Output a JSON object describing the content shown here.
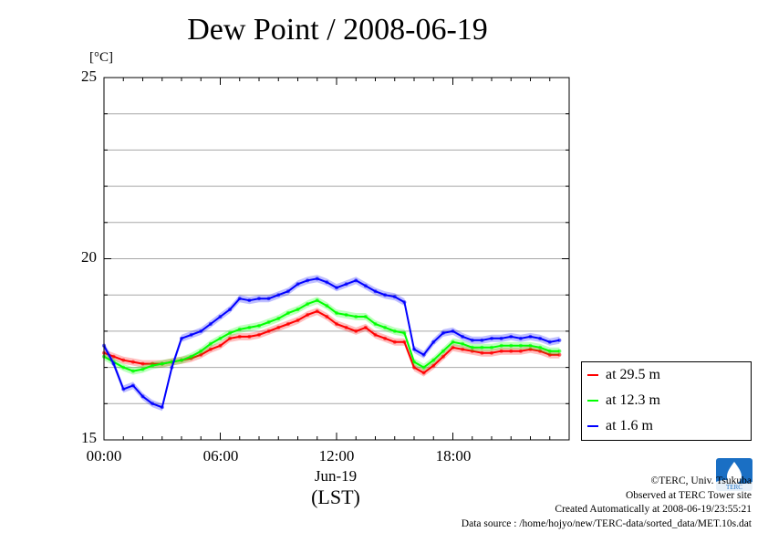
{
  "title": "Dew Point / 2008-06-19",
  "unit": "[°C]",
  "legend": {
    "items": [
      {
        "label": "at 29.5 m",
        "color": "#ff0000"
      },
      {
        "label": "at 12.3 m",
        "color": "#00ff00"
      },
      {
        "label": "at 1.6 m",
        "color": "#0000ff"
      }
    ]
  },
  "credits": {
    "copyright": "©TERC, Univ. Tsukuba",
    "site": "Observed at TERC Tower site",
    "created": "Created Automatically at 2008-06-19/23:55:21",
    "source": "Data source : /home/hojyo/new/TERC-data/sorted_data/MET.10s.dat"
  },
  "logo_text": "TERC",
  "chart_data": {
    "type": "line",
    "title": "Dew Point / 2008-06-19",
    "ylabel": "[°C]",
    "xlabel": "(LST)",
    "x_sublabel": "Jun-19",
    "xlim": [
      0,
      24
    ],
    "ylim": [
      15,
      25
    ],
    "x_ticks": [
      "00:00",
      "06:00",
      "12:00",
      "18:00"
    ],
    "y_ticks": [
      "15",
      "20",
      "25"
    ],
    "grid": true,
    "legend_position": "right-bottom",
    "series": [
      {
        "name": "at 29.5 m",
        "color": "#ff0000",
        "x": [
          0,
          0.5,
          1,
          1.5,
          2,
          2.5,
          3,
          3.5,
          4,
          4.5,
          5,
          5.5,
          6,
          6.5,
          7,
          7.5,
          8,
          8.5,
          9,
          9.5,
          10,
          10.5,
          11,
          11.5,
          12,
          12.5,
          13,
          13.5,
          14,
          14.5,
          15,
          15.5,
          16,
          16.5,
          17,
          17.5,
          18,
          18.5,
          19,
          19.5,
          20,
          20.5,
          21,
          21.5,
          22,
          22.5,
          23,
          23.5
        ],
        "values": [
          17.4,
          17.3,
          17.2,
          17.15,
          17.1,
          17.1,
          17.1,
          17.15,
          17.2,
          17.25,
          17.35,
          17.5,
          17.6,
          17.8,
          17.85,
          17.85,
          17.9,
          18.0,
          18.1,
          18.2,
          18.3,
          18.45,
          18.55,
          18.4,
          18.2,
          18.1,
          18.0,
          18.1,
          17.9,
          17.8,
          17.7,
          17.7,
          17.0,
          16.85,
          17.05,
          17.3,
          17.55,
          17.5,
          17.45,
          17.4,
          17.4,
          17.45,
          17.45,
          17.45,
          17.5,
          17.45,
          17.35,
          17.35
        ]
      },
      {
        "name": "at 12.3 m",
        "color": "#00ff00",
        "x": [
          0,
          0.5,
          1,
          1.5,
          2,
          2.5,
          3,
          3.5,
          4,
          4.5,
          5,
          5.5,
          6,
          6.5,
          7,
          7.5,
          8,
          8.5,
          9,
          9.5,
          10,
          10.5,
          11,
          11.5,
          12,
          12.5,
          13,
          13.5,
          14,
          14.5,
          15,
          15.5,
          16,
          16.5,
          17,
          17.5,
          18,
          18.5,
          19,
          19.5,
          20,
          20.5,
          21,
          21.5,
          22,
          22.5,
          23,
          23.5
        ],
        "values": [
          17.3,
          17.15,
          17.0,
          16.9,
          16.95,
          17.05,
          17.1,
          17.15,
          17.2,
          17.3,
          17.45,
          17.65,
          17.8,
          17.95,
          18.05,
          18.1,
          18.15,
          18.25,
          18.35,
          18.5,
          18.6,
          18.75,
          18.85,
          18.7,
          18.5,
          18.45,
          18.4,
          18.4,
          18.2,
          18.1,
          18.0,
          17.95,
          17.15,
          17.0,
          17.2,
          17.45,
          17.7,
          17.65,
          17.55,
          17.55,
          17.55,
          17.6,
          17.6,
          17.6,
          17.6,
          17.55,
          17.45,
          17.45
        ]
      },
      {
        "name": "at 1.6 m",
        "color": "#0000ff",
        "x": [
          0,
          0.5,
          1,
          1.5,
          2,
          2.5,
          3,
          3.5,
          4,
          4.5,
          5,
          5.5,
          6,
          6.5,
          7,
          7.5,
          8,
          8.5,
          9,
          9.5,
          10,
          10.5,
          11,
          11.5,
          12,
          12.5,
          13,
          13.5,
          14,
          14.5,
          15,
          15.5,
          16,
          16.5,
          17,
          17.5,
          18,
          18.5,
          19,
          19.5,
          20,
          20.5,
          21,
          21.5,
          22,
          22.5,
          23,
          23.5
        ],
        "values": [
          17.6,
          17.1,
          16.4,
          16.5,
          16.2,
          16.0,
          15.9,
          17.0,
          17.8,
          17.9,
          18.0,
          18.2,
          18.4,
          18.6,
          18.9,
          18.85,
          18.9,
          18.9,
          19.0,
          19.1,
          19.3,
          19.4,
          19.45,
          19.35,
          19.2,
          19.3,
          19.4,
          19.25,
          19.1,
          19.0,
          18.95,
          18.8,
          17.5,
          17.35,
          17.7,
          17.95,
          18.0,
          17.85,
          17.75,
          17.75,
          17.8,
          17.8,
          17.85,
          17.8,
          17.85,
          17.8,
          17.7,
          17.75
        ]
      }
    ]
  }
}
